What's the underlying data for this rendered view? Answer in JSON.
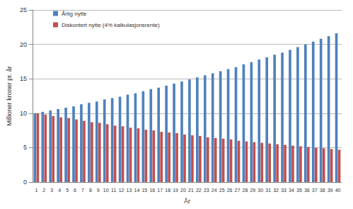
{
  "chart_data": {
    "type": "bar",
    "x_label": "År",
    "y_label": "Millioner kroner pr. år",
    "categories": [
      "1",
      "2",
      "3",
      "4",
      "5",
      "6",
      "7",
      "8",
      "9",
      "10",
      "11",
      "12",
      "13",
      "14",
      "15",
      "16",
      "17",
      "18",
      "19",
      "20",
      "21",
      "22",
      "23",
      "24",
      "25",
      "26",
      "27",
      "28",
      "29",
      "30",
      "31",
      "32",
      "33",
      "34",
      "35",
      "36",
      "37",
      "38",
      "39",
      "40"
    ],
    "series": [
      {
        "name": "Årlig nytte",
        "color": "#4f81bd",
        "values": [
          10.0,
          10.2,
          10.4,
          10.6,
          10.8,
          11.0,
          11.3,
          11.5,
          11.7,
          12.0,
          12.2,
          12.4,
          12.7,
          12.9,
          13.2,
          13.5,
          13.7,
          14.0,
          14.3,
          14.6,
          14.9,
          15.2,
          15.5,
          15.8,
          16.1,
          16.4,
          16.7,
          17.1,
          17.4,
          17.8,
          18.1,
          18.5,
          18.8,
          19.2,
          19.6,
          20.0,
          20.4,
          20.8,
          21.2,
          21.6
        ]
      },
      {
        "name": "Diskontert nytte (4% kalkulasjonsrente)",
        "color": "#c0504d",
        "values": [
          10.0,
          9.8,
          9.6,
          9.4,
          9.3,
          9.1,
          8.9,
          8.7,
          8.6,
          8.4,
          8.2,
          8.1,
          7.9,
          7.8,
          7.6,
          7.5,
          7.3,
          7.2,
          7.1,
          6.9,
          6.8,
          6.7,
          6.5,
          6.4,
          6.3,
          6.2,
          6.0,
          5.9,
          5.8,
          5.7,
          5.6,
          5.5,
          5.4,
          5.3,
          5.2,
          5.1,
          5.0,
          4.9,
          4.8,
          4.7
        ]
      }
    ],
    "ylim": [
      0,
      25
    ],
    "yticks": [
      0,
      5,
      10,
      15,
      20,
      25
    ],
    "grid": true,
    "legend": "upper left"
  }
}
